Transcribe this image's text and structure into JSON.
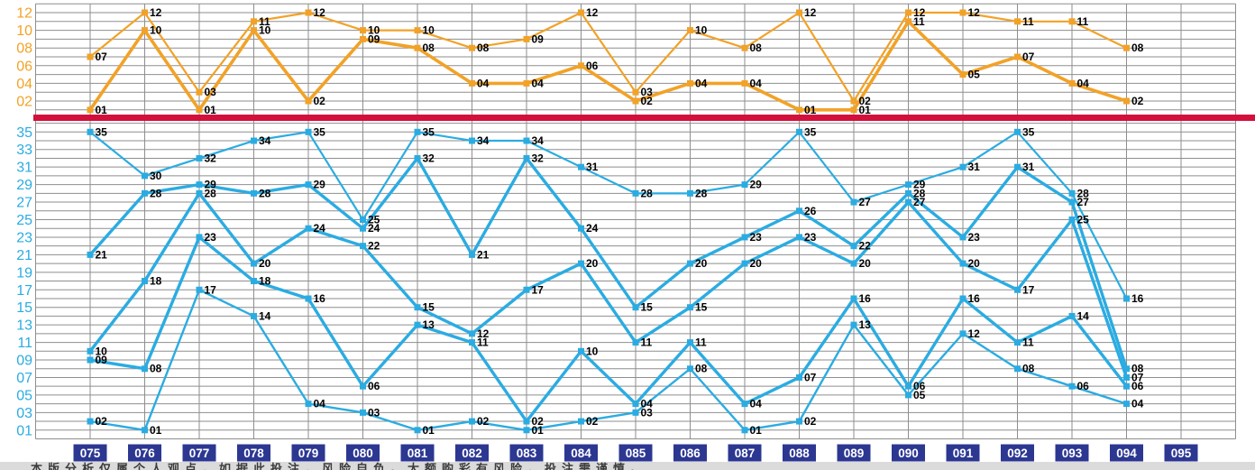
{
  "colors": {
    "back_zone_line": "#F2A227",
    "front_zone_line": "#2AACE2",
    "divider": "#D30F3C",
    "grid": "#8E8E8E",
    "axis_back_label": "#F2A227",
    "axis_front_label": "#2AACE2",
    "draw_box_bg": "#2C3792",
    "draw_box_text": "#FFFFFF",
    "point_label": "#000000",
    "footer_bg": "#DBDBDB"
  },
  "y_axis": {
    "back_labels": [
      "12",
      "10",
      "08",
      "06",
      "04",
      "02"
    ],
    "front_labels": [
      "35",
      "33",
      "31",
      "29",
      "27",
      "25",
      "23",
      "21",
      "19",
      "17",
      "15",
      "13",
      "11",
      "09",
      "07",
      "05",
      "03",
      "01"
    ]
  },
  "x_axis": {
    "draws": [
      "075",
      "076",
      "077",
      "078",
      "079",
      "080",
      "081",
      "082",
      "083",
      "084",
      "085",
      "086",
      "087",
      "088",
      "089",
      "090",
      "091",
      "092",
      "093",
      "094",
      "095"
    ]
  },
  "chart_data": {
    "type": "line",
    "x_categories": [
      "075",
      "076",
      "077",
      "078",
      "079",
      "080",
      "081",
      "082",
      "083",
      "084",
      "085",
      "086",
      "087",
      "088",
      "089",
      "090",
      "091",
      "092",
      "093",
      "094",
      "095"
    ],
    "back_zone": {
      "ylim": [
        1,
        12
      ],
      "tick_labels": [
        "12",
        "10",
        "08",
        "06",
        "04",
        "02"
      ],
      "draws": [
        {
          "draw": "075",
          "numbers": [
            7,
            1
          ]
        },
        {
          "draw": "076",
          "numbers": [
            12,
            10
          ]
        },
        {
          "draw": "077",
          "numbers": [
            3,
            1
          ]
        },
        {
          "draw": "078",
          "numbers": [
            11,
            10
          ]
        },
        {
          "draw": "079",
          "numbers": [
            12,
            2
          ]
        },
        {
          "draw": "080",
          "numbers": [
            10,
            9
          ]
        },
        {
          "draw": "081",
          "numbers": [
            10,
            8
          ]
        },
        {
          "draw": "082",
          "numbers": [
            8,
            4
          ]
        },
        {
          "draw": "083",
          "numbers": [
            9,
            4
          ]
        },
        {
          "draw": "084",
          "numbers": [
            12,
            6
          ]
        },
        {
          "draw": "085",
          "numbers": [
            3,
            2
          ]
        },
        {
          "draw": "086",
          "numbers": [
            10,
            4
          ]
        },
        {
          "draw": "087",
          "numbers": [
            8,
            4
          ]
        },
        {
          "draw": "088",
          "numbers": [
            12,
            1
          ]
        },
        {
          "draw": "089",
          "numbers": [
            2,
            1
          ]
        },
        {
          "draw": "090",
          "numbers": [
            12,
            11
          ]
        },
        {
          "draw": "091",
          "numbers": [
            12,
            5
          ]
        },
        {
          "draw": "092",
          "numbers": [
            11,
            7
          ]
        },
        {
          "draw": "093",
          "numbers": [
            11,
            4
          ]
        },
        {
          "draw": "094",
          "numbers": [
            8,
            2
          ]
        },
        {
          "draw": "095",
          "numbers": []
        }
      ]
    },
    "front_zone": {
      "ylim": [
        1,
        35
      ],
      "tick_labels": [
        "35",
        "33",
        "31",
        "29",
        "27",
        "25",
        "23",
        "21",
        "19",
        "17",
        "15",
        "13",
        "11",
        "09",
        "07",
        "05",
        "03",
        "01"
      ],
      "draws": [
        {
          "draw": "075",
          "numbers": [
            35,
            21,
            10,
            9,
            2
          ]
        },
        {
          "draw": "076",
          "numbers": [
            30,
            28,
            18,
            8,
            1
          ]
        },
        {
          "draw": "077",
          "numbers": [
            32,
            29,
            28,
            23,
            17
          ]
        },
        {
          "draw": "078",
          "numbers": [
            34,
            28,
            20,
            18,
            14
          ]
        },
        {
          "draw": "079",
          "numbers": [
            35,
            29,
            24,
            16,
            4
          ]
        },
        {
          "draw": "080",
          "numbers": [
            25,
            24,
            22,
            6,
            3
          ]
        },
        {
          "draw": "081",
          "numbers": [
            35,
            32,
            15,
            13,
            1
          ]
        },
        {
          "draw": "082",
          "numbers": [
            34,
            21,
            12,
            11,
            2
          ]
        },
        {
          "draw": "083",
          "numbers": [
            34,
            32,
            17,
            2,
            1
          ]
        },
        {
          "draw": "084",
          "numbers": [
            31,
            24,
            20,
            10,
            2
          ]
        },
        {
          "draw": "085",
          "numbers": [
            28,
            15,
            11,
            4,
            3
          ]
        },
        {
          "draw": "086",
          "numbers": [
            28,
            20,
            15,
            11,
            8
          ]
        },
        {
          "draw": "087",
          "numbers": [
            29,
            23,
            20,
            4,
            1
          ]
        },
        {
          "draw": "088",
          "numbers": [
            35,
            26,
            23,
            7,
            2
          ]
        },
        {
          "draw": "089",
          "numbers": [
            27,
            22,
            20,
            16,
            13
          ]
        },
        {
          "draw": "090",
          "numbers": [
            29,
            28,
            27,
            6,
            5
          ]
        },
        {
          "draw": "091",
          "numbers": [
            31,
            23,
            20,
            16,
            12
          ]
        },
        {
          "draw": "092",
          "numbers": [
            35,
            31,
            17,
            11,
            8
          ]
        },
        {
          "draw": "093",
          "numbers": [
            28,
            27,
            25,
            14,
            6
          ]
        },
        {
          "draw": "094",
          "numbers": [
            16,
            8,
            7,
            6,
            4
          ]
        },
        {
          "draw": "095",
          "numbers": []
        }
      ]
    }
  },
  "footer": {
    "disclaimer": "本版分析仅属个人观点，如据此投注，风险自负。大额购彩有风险，投注需谨慎。"
  }
}
